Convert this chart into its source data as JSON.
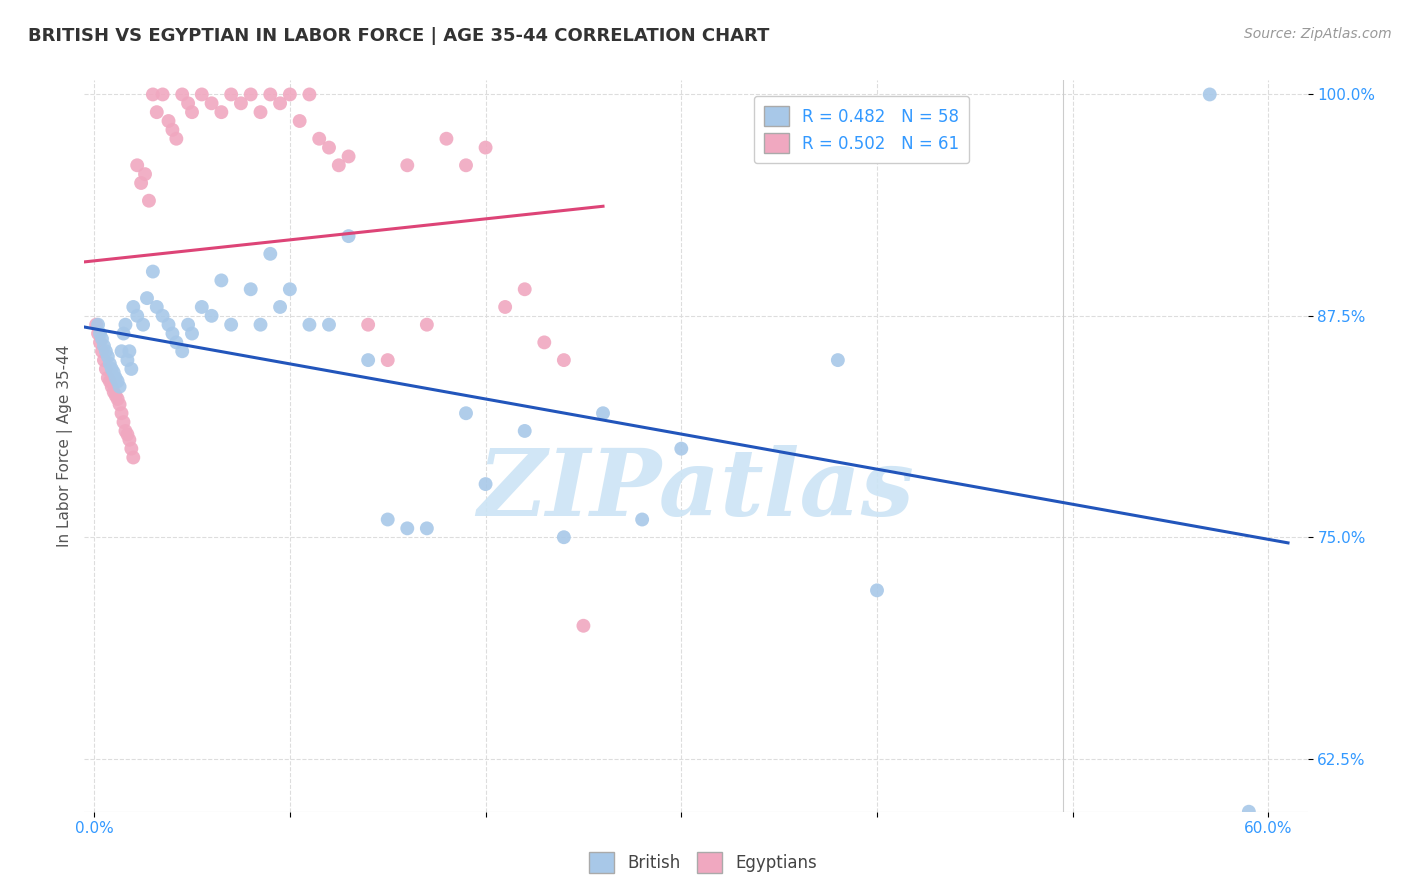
{
  "title": "BRITISH VS EGYPTIAN IN LABOR FORCE | AGE 35-44 CORRELATION CHART",
  "source": "Source: ZipAtlas.com",
  "ylabel": "In Labor Force | Age 35-44",
  "xlim": [
    -0.005,
    0.62
  ],
  "ylim": [
    0.595,
    1.008
  ],
  "x_tick_positions": [
    0.0,
    0.1,
    0.2,
    0.3,
    0.4,
    0.5,
    0.6
  ],
  "x_tick_labels": [
    "0.0%",
    "",
    "",
    "",
    "",
    "",
    "60.0%"
  ],
  "y_tick_positions": [
    0.625,
    0.75,
    0.875,
    1.0
  ],
  "y_tick_labels": [
    "62.5%",
    "75.0%",
    "87.5%",
    "100.0%"
  ],
  "british_color": "#a8c8e8",
  "egyptian_color": "#f0a8c0",
  "british_line_color": "#2255bb",
  "egyptian_line_color": "#dd4477",
  "british_R": 0.482,
  "british_N": 58,
  "egyptian_R": 0.502,
  "egyptian_N": 61,
  "axis_color": "#3399ff",
  "title_color": "#333333",
  "source_color": "#999999",
  "ylabel_color": "#555555",
  "watermark_text": "ZIPatlas",
  "watermark_color": "#cce4f5",
  "grid_color": "#dddddd",
  "british_x": [
    0.002,
    0.003,
    0.004,
    0.005,
    0.006,
    0.007,
    0.008,
    0.009,
    0.01,
    0.011,
    0.012,
    0.013,
    0.014,
    0.015,
    0.016,
    0.017,
    0.018,
    0.019,
    0.02,
    0.022,
    0.025,
    0.027,
    0.03,
    0.032,
    0.035,
    0.038,
    0.04,
    0.042,
    0.045,
    0.048,
    0.05,
    0.055,
    0.06,
    0.065,
    0.07,
    0.08,
    0.085,
    0.09,
    0.095,
    0.1,
    0.11,
    0.12,
    0.13,
    0.14,
    0.15,
    0.16,
    0.17,
    0.19,
    0.2,
    0.22,
    0.24,
    0.26,
    0.28,
    0.3,
    0.38,
    0.4,
    0.57,
    0.59
  ],
  "british_y": [
    0.87,
    0.865,
    0.862,
    0.858,
    0.855,
    0.852,
    0.848,
    0.845,
    0.843,
    0.84,
    0.838,
    0.835,
    0.855,
    0.865,
    0.87,
    0.85,
    0.855,
    0.845,
    0.88,
    0.875,
    0.87,
    0.885,
    0.9,
    0.88,
    0.875,
    0.87,
    0.865,
    0.86,
    0.855,
    0.87,
    0.865,
    0.88,
    0.875,
    0.895,
    0.87,
    0.89,
    0.87,
    0.91,
    0.88,
    0.89,
    0.87,
    0.87,
    0.92,
    0.85,
    0.76,
    0.755,
    0.755,
    0.82,
    0.78,
    0.81,
    0.75,
    0.82,
    0.76,
    0.8,
    0.85,
    0.72,
    1.0,
    0.595
  ],
  "egyptian_x": [
    0.001,
    0.002,
    0.003,
    0.004,
    0.005,
    0.006,
    0.007,
    0.008,
    0.009,
    0.01,
    0.011,
    0.012,
    0.013,
    0.014,
    0.015,
    0.016,
    0.017,
    0.018,
    0.019,
    0.02,
    0.022,
    0.024,
    0.026,
    0.028,
    0.03,
    0.032,
    0.035,
    0.038,
    0.04,
    0.042,
    0.045,
    0.048,
    0.05,
    0.055,
    0.06,
    0.065,
    0.07,
    0.075,
    0.08,
    0.085,
    0.09,
    0.095,
    0.1,
    0.105,
    0.11,
    0.115,
    0.12,
    0.125,
    0.13,
    0.14,
    0.15,
    0.16,
    0.17,
    0.18,
    0.19,
    0.2,
    0.21,
    0.22,
    0.23,
    0.24,
    0.25
  ],
  "egyptian_y": [
    0.87,
    0.865,
    0.86,
    0.855,
    0.85,
    0.845,
    0.84,
    0.838,
    0.835,
    0.832,
    0.83,
    0.828,
    0.825,
    0.82,
    0.815,
    0.81,
    0.808,
    0.805,
    0.8,
    0.795,
    0.96,
    0.95,
    0.955,
    0.94,
    1.0,
    0.99,
    1.0,
    0.985,
    0.98,
    0.975,
    1.0,
    0.995,
    0.99,
    1.0,
    0.995,
    0.99,
    1.0,
    0.995,
    1.0,
    0.99,
    1.0,
    0.995,
    1.0,
    0.985,
    1.0,
    0.975,
    0.97,
    0.96,
    0.965,
    0.87,
    0.85,
    0.96,
    0.87,
    0.975,
    0.96,
    0.97,
    0.88,
    0.89,
    0.86,
    0.85,
    0.7
  ]
}
